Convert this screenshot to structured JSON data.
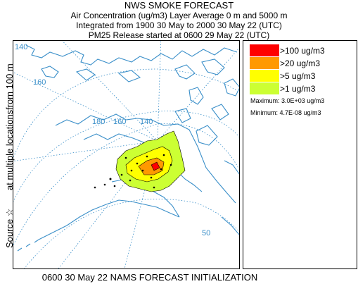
{
  "header": {
    "title": "NWS SMOKE FORECAST",
    "line2": "Air Concentration (ug/m3) Layer Average    0 m and  5000 m",
    "line3": "Integrated from 1900 30 May to 2000 30 May 22 (UTC)",
    "line4": "PM25 Release started at 0600 29 May 22 (UTC)"
  },
  "side_label": {
    "source": "Source ☆",
    "locations": "at multiple locations",
    "height": "from   100 m"
  },
  "map": {
    "grid_labels": [
      "140",
      "160",
      "180",
      "160",
      "140",
      "50"
    ],
    "coast_color": "#3a8fc9",
    "smoke_colors": [
      "#ccff33",
      "#ffff00",
      "#ff9900",
      "#ff0000"
    ]
  },
  "legend": {
    "items": [
      {
        "label": ">100 ug/m3",
        "color": "#ff0000"
      },
      {
        "label": ">20 ug/m3",
        "color": "#ff9900"
      },
      {
        "label": ">5 ug/m3",
        "color": "#ffff00"
      },
      {
        "label": ">1 ug/m3",
        "color": "#ccff33"
      }
    ],
    "maximum": "Maximum: 3.0E+03 ug/m3",
    "minimum": "Minimum: 4.7E-08 ug/m3"
  },
  "footer": "0600 30 May 22 NAMS FORECAST INITIALIZATION"
}
